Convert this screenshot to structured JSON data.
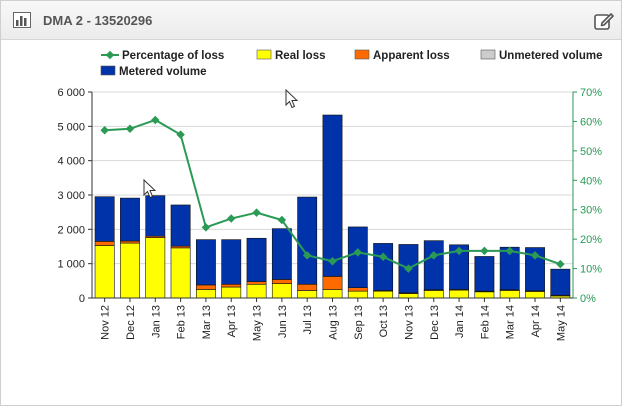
{
  "panel": {
    "title": "DMA 2 - 13520296",
    "header_icon": "bar-chart-icon",
    "action_icon": "edit-icon"
  },
  "chart_data": {
    "type": "bar",
    "stacked": true,
    "categories": [
      "Nov 12",
      "Dec 12",
      "Jan 13",
      "Feb 13",
      "Mar 13",
      "Apr 13",
      "May 13",
      "Jun 13",
      "Jul 13",
      "Aug 13",
      "Sep 13",
      "Oct 13",
      "Nov 13",
      "Dec 13",
      "Jan 14",
      "Feb 14",
      "Mar 14",
      "Apr 14",
      "May 14"
    ],
    "series": [
      {
        "name": "Real loss",
        "color": "#ffff00",
        "values": [
          1530,
          1600,
          1760,
          1460,
          250,
          320,
          400,
          420,
          220,
          250,
          200,
          200,
          130,
          220,
          230,
          180,
          220,
          190,
          60
        ]
      },
      {
        "name": "Apparent loss",
        "color": "#ff6a00",
        "values": [
          120,
          60,
          40,
          50,
          130,
          80,
          80,
          120,
          180,
          380,
          100,
          20,
          20,
          20,
          20,
          20,
          20,
          20,
          20
        ]
      },
      {
        "name": "Unmetered volume",
        "color": "#cccccc",
        "values": [
          0,
          0,
          0,
          0,
          0,
          0,
          0,
          0,
          0,
          0,
          0,
          0,
          0,
          0,
          0,
          0,
          0,
          0,
          0
        ]
      },
      {
        "name": "Metered volume",
        "color": "#0033aa",
        "values": [
          1300,
          1250,
          1180,
          1200,
          1320,
          1300,
          1260,
          1480,
          2540,
          4700,
          1770,
          1370,
          1410,
          1430,
          1300,
          1010,
          1240,
          1260,
          760
        ]
      }
    ],
    "line_series": {
      "name": "Percentage of loss",
      "color": "#2a9a55",
      "axis": "right",
      "values": [
        57,
        57.5,
        60.5,
        55.5,
        24,
        27,
        29,
        26.5,
        14.5,
        12.5,
        15.5,
        14,
        10,
        14.5,
        16,
        16,
        16,
        14.5,
        11.5
      ]
    },
    "y_left": {
      "min": 0,
      "max": 6000,
      "ticks": [
        "0",
        "1 000",
        "2 000",
        "3 000",
        "4 000",
        "5 000",
        "6 000"
      ]
    },
    "y_right": {
      "min": 0,
      "max": 70,
      "ticks": [
        "0%",
        "10%",
        "20%",
        "30%",
        "40%",
        "50%",
        "60%",
        "70%"
      ],
      "color": "#2a9a55"
    },
    "grid": "horizontal",
    "legend_position": "top"
  }
}
